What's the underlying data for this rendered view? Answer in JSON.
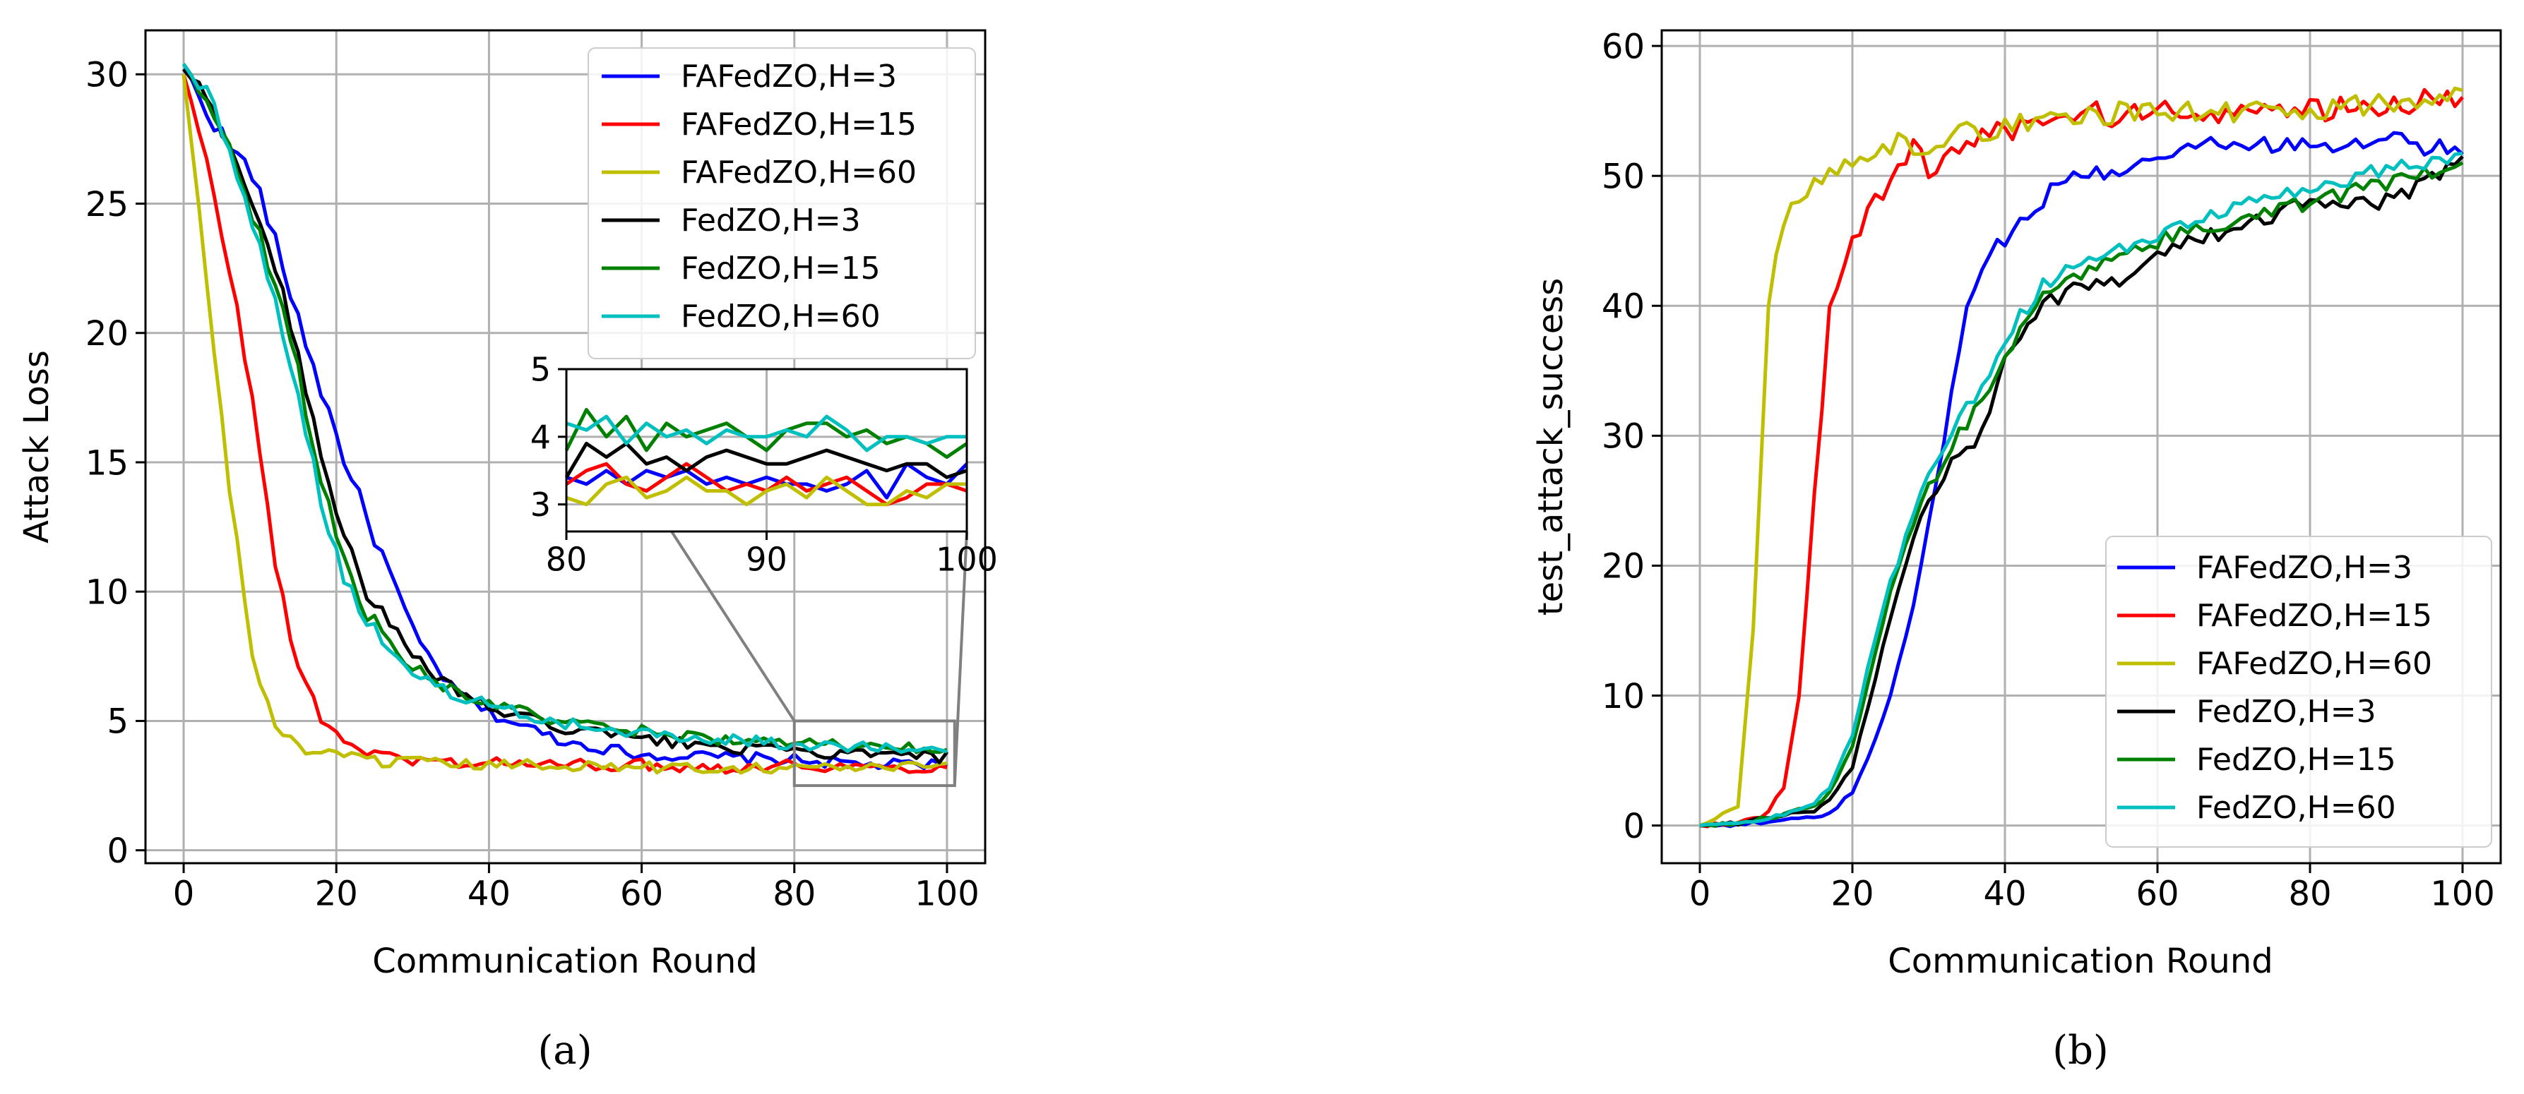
{
  "chart_data": [
    {
      "id": "a",
      "type": "line",
      "caption": "(a)",
      "title": "",
      "xlabel": "Communication Round",
      "ylabel": "Attack Loss",
      "xlim": [
        -5,
        105
      ],
      "ylim": [
        -0.5,
        31.7
      ],
      "xticks": [
        0,
        20,
        40,
        60,
        80,
        100
      ],
      "yticks": [
        0,
        5,
        10,
        15,
        20,
        25,
        30
      ],
      "grid": true,
      "legend_position": "top-right",
      "key_points": {
        "x": [
          0,
          3,
          6,
          9,
          12,
          15,
          18,
          21,
          24,
          27,
          30,
          35,
          40,
          50,
          60,
          70,
          80,
          90,
          100
        ],
        "series": [
          {
            "name": "FAFedZO,H=3",
            "color": "#0000ff",
            "values": [
              30.2,
              28.6,
              27.2,
              26.2,
              23.5,
              20.6,
              17.8,
              15.2,
              12.8,
              10.7,
              8.4,
              6.3,
              5.3,
              4.2,
              3.7,
              3.6,
              3.5,
              3.3,
              3.3
            ]
          },
          {
            "name": "FAFedZO,H=15",
            "color": "#ff0000",
            "values": [
              30.0,
              26.5,
              22.5,
              17.5,
              11.0,
              7.2,
              5.0,
              4.3,
              3.8,
              3.6,
              3.5,
              3.4,
              3.4,
              3.3,
              3.3,
              3.2,
              3.3,
              3.2,
              3.2
            ]
          },
          {
            "name": "FAFedZO,H=60",
            "color": "#bfbf00",
            "values": [
              30.0,
              22.0,
              14.0,
              7.5,
              4.8,
              4.0,
              3.7,
              3.6,
              3.5,
              3.4,
              3.4,
              3.3,
              3.3,
              3.3,
              3.2,
              3.2,
              3.2,
              3.2,
              3.2
            ]
          },
          {
            "name": "FedZO,H=3",
            "color": "#000000",
            "values": [
              30.2,
              29.0,
              27.4,
              25.0,
              22.5,
              19.3,
              15.4,
              12.2,
              10.0,
              8.6,
              7.5,
              6.3,
              5.5,
              4.7,
              4.3,
              4.0,
              3.8,
              3.7,
              3.6
            ]
          },
          {
            "name": "FedZO,H=15",
            "color": "#008000",
            "values": [
              30.4,
              29.2,
              27.0,
              24.6,
              22.0,
              18.5,
              14.2,
              11.3,
              9.2,
              8.0,
              7.1,
              6.2,
              5.7,
              4.9,
              4.6,
              4.3,
              4.1,
              4.0,
              3.9
            ]
          },
          {
            "name": "FedZO,H=60",
            "color": "#00bfbf",
            "values": [
              30.4,
              29.3,
              27.2,
              24.3,
              21.5,
              17.4,
              13.6,
              10.6,
              8.9,
              7.7,
              6.9,
              6.1,
              5.6,
              4.9,
              4.5,
              4.3,
              4.1,
              4.0,
              3.9
            ]
          }
        ]
      },
      "inset": {
        "xlim": [
          80,
          100
        ],
        "ylim": [
          2.6,
          5.0
        ],
        "xticks": [
          80,
          90,
          100
        ],
        "yticks": [
          3,
          4,
          5
        ],
        "zoom_box": {
          "x": [
            80,
            101
          ],
          "y": [
            2.5,
            5.0
          ]
        },
        "series": [
          {
            "name": "FAFedZO,H=3",
            "color": "#0000ff",
            "x": [
              80,
              81,
              82,
              83,
              84,
              85,
              86,
              87,
              88,
              89,
              90,
              91,
              92,
              93,
              94,
              95,
              96,
              97,
              98,
              99,
              100
            ],
            "values": [
              3.4,
              3.3,
              3.5,
              3.3,
              3.5,
              3.4,
              3.5,
              3.3,
              3.4,
              3.3,
              3.4,
              3.3,
              3.3,
              3.2,
              3.3,
              3.5,
              3.1,
              3.6,
              3.4,
              3.3,
              3.6
            ]
          },
          {
            "name": "FAFedZO,H=15",
            "color": "#ff0000",
            "x": [
              80,
              81,
              82,
              83,
              84,
              85,
              86,
              87,
              88,
              89,
              90,
              91,
              92,
              93,
              94,
              95,
              96,
              97,
              98,
              99,
              100
            ],
            "values": [
              3.3,
              3.5,
              3.6,
              3.3,
              3.2,
              3.4,
              3.6,
              3.4,
              3.2,
              3.3,
              3.2,
              3.4,
              3.2,
              3.3,
              3.4,
              3.2,
              3.0,
              3.1,
              3.3,
              3.3,
              3.2
            ]
          },
          {
            "name": "FAFedZO,H=60",
            "color": "#bfbf00",
            "x": [
              80,
              81,
              82,
              83,
              84,
              85,
              86,
              87,
              88,
              89,
              90,
              91,
              92,
              93,
              94,
              95,
              96,
              97,
              98,
              99,
              100
            ],
            "values": [
              3.1,
              3.0,
              3.3,
              3.4,
              3.1,
              3.2,
              3.4,
              3.2,
              3.2,
              3.0,
              3.2,
              3.3,
              3.1,
              3.4,
              3.2,
              3.0,
              3.0,
              3.2,
              3.1,
              3.3,
              3.3
            ]
          },
          {
            "name": "FedZO,H=3",
            "color": "#000000",
            "x": [
              80,
              81,
              82,
              83,
              84,
              85,
              86,
              87,
              88,
              89,
              90,
              91,
              92,
              93,
              94,
              95,
              96,
              97,
              98,
              99,
              100
            ],
            "values": [
              3.4,
              3.9,
              3.7,
              3.9,
              3.6,
              3.7,
              3.5,
              3.7,
              3.8,
              3.7,
              3.6,
              3.6,
              3.7,
              3.8,
              3.7,
              3.6,
              3.5,
              3.6,
              3.6,
              3.4,
              3.5
            ]
          },
          {
            "name": "FedZO,H=15",
            "color": "#008000",
            "x": [
              80,
              81,
              82,
              83,
              84,
              85,
              86,
              87,
              88,
              89,
              90,
              91,
              92,
              93,
              94,
              95,
              96,
              97,
              98,
              99,
              100
            ],
            "values": [
              3.8,
              4.4,
              4.0,
              4.3,
              3.8,
              4.2,
              4.0,
              4.1,
              4.2,
              4.0,
              3.8,
              4.1,
              4.2,
              4.2,
              4.0,
              4.1,
              3.9,
              4.0,
              3.9,
              3.7,
              3.9
            ]
          },
          {
            "name": "FedZO,H=60",
            "color": "#00bfbf",
            "x": [
              80,
              81,
              82,
              83,
              84,
              85,
              86,
              87,
              88,
              89,
              90,
              91,
              92,
              93,
              94,
              95,
              96,
              97,
              98,
              99,
              100
            ],
            "values": [
              4.2,
              4.1,
              4.3,
              3.9,
              4.2,
              4.0,
              4.1,
              3.9,
              4.1,
              4.0,
              4.0,
              4.1,
              4.0,
              4.3,
              4.1,
              3.8,
              4.0,
              4.0,
              3.9,
              4.0,
              4.0
            ]
          }
        ]
      }
    },
    {
      "id": "b",
      "type": "line",
      "caption": "(b)",
      "title": "",
      "xlabel": "Communication Round",
      "ylabel": "test_attack_success",
      "xlim": [
        -5,
        105
      ],
      "ylim": [
        -2.9,
        61.2
      ],
      "xticks": [
        0,
        20,
        40,
        60,
        80,
        100
      ],
      "yticks": [
        0,
        10,
        20,
        30,
        40,
        50,
        60
      ],
      "grid": true,
      "legend_position": "bottom-right",
      "key_points": {
        "x": [
          0,
          5,
          7,
          9,
          11,
          13,
          15,
          17,
          20,
          22,
          25,
          28,
          30,
          33,
          35,
          38,
          40,
          45,
          50,
          55,
          60,
          70,
          80,
          90,
          100
        ],
        "series": [
          {
            "name": "FAFedZO,H=3",
            "color": "#0000ff",
            "values": [
              0,
              0.1,
              0.2,
              0.3,
              0.4,
              0.5,
              0.7,
              1.0,
              2.5,
              5.0,
              10.0,
              17.0,
              23.0,
              33.0,
              40.0,
              43.5,
              45.5,
              48.5,
              50.0,
              50.8,
              52.0,
              52.3,
              52.6,
              53.0,
              52.0
            ]
          },
          {
            "name": "FAFedZO,H=15",
            "color": "#ff0000",
            "values": [
              0,
              0.3,
              0.5,
              1.0,
              3.0,
              10.0,
              25.0,
              40.0,
              45.0,
              47.5,
              49.5,
              52.0,
              50.5,
              52.0,
              52.5,
              53.0,
              53.5,
              54.0,
              55.0,
              54.5,
              55.0,
              55.0,
              55.0,
              55.5,
              56.0
            ]
          },
          {
            "name": "FAFedZO,H=60",
            "color": "#bfbf00",
            "values": [
              0,
              1.5,
              15.0,
              40.0,
              47.0,
              48.5,
              49.5,
              50.5,
              51.0,
              51.5,
              52.5,
              52.5,
              52.5,
              53.0,
              53.5,
              53.5,
              54.0,
              54.0,
              54.5,
              55.0,
              55.0,
              55.0,
              55.0,
              55.5,
              57.0
            ]
          },
          {
            "name": "FedZO,H=3",
            "color": "#000000",
            "values": [
              0,
              0.2,
              0.4,
              0.6,
              0.8,
              1.0,
              1.2,
              2.0,
              4.5,
              9.0,
              16.0,
              22.0,
              25.0,
              28.0,
              28.5,
              32.0,
              36.0,
              40.0,
              41.5,
              42.0,
              44.0,
              46.0,
              48.0,
              48.0,
              51.0
            ]
          },
          {
            "name": "FedZO,H=15",
            "color": "#008000",
            "values": [
              0,
              0.2,
              0.4,
              0.6,
              0.8,
              1.2,
              1.5,
              2.5,
              6.0,
              11.0,
              18.0,
              23.0,
              26.0,
              29.0,
              31.0,
              34.0,
              36.5,
              40.5,
              42.5,
              43.5,
              45.0,
              46.5,
              48.0,
              49.5,
              51.0
            ]
          },
          {
            "name": "FedZO,H=60",
            "color": "#00bfbf",
            "values": [
              0,
              0.2,
              0.4,
              0.6,
              0.8,
              1.2,
              1.6,
              3.0,
              7.0,
              12.0,
              19.0,
              24.0,
              27.0,
              30.0,
              32.0,
              35.0,
              37.5,
              41.5,
              43.5,
              44.5,
              45.5,
              47.5,
              49.0,
              50.5,
              51.5
            ]
          }
        ]
      }
    }
  ]
}
